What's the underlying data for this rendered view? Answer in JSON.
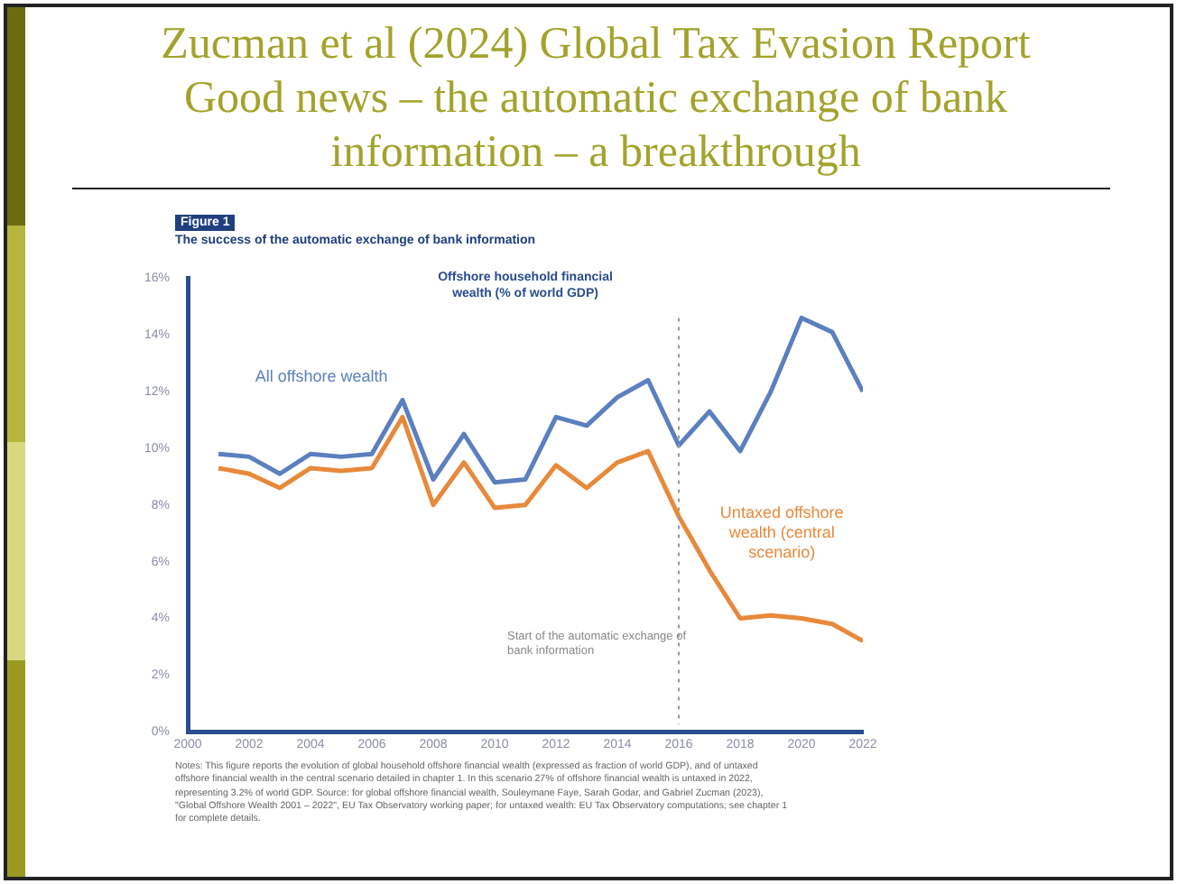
{
  "chart_data": {
    "type": "line",
    "title": "Zucman et al (2024) Global Tax Evasion Report Good news – the automatic exchange of bank information – a breakthrough",
    "subtitle": "The success of the automatic exchange of bank information",
    "x": [
      2001,
      2002,
      2003,
      2004,
      2005,
      2006,
      2007,
      2008,
      2009,
      2010,
      2011,
      2012,
      2013,
      2014,
      2015,
      2016,
      2017,
      2018,
      2019,
      2020,
      2021,
      2022
    ],
    "series": [
      {
        "name": "All offshore wealth",
        "color": "#5b7fbf",
        "values": [
          9.8,
          9.7,
          9.1,
          9.8,
          9.7,
          9.8,
          11.7,
          8.9,
          10.5,
          8.8,
          8.9,
          11.1,
          10.8,
          11.8,
          12.4,
          10.1,
          11.3,
          9.9,
          12.0,
          14.6,
          14.1,
          12.0
        ]
      },
      {
        "name": "Untaxed offshore wealth (central scenario)",
        "color": "#e8893a",
        "values": [
          9.3,
          9.1,
          8.6,
          9.3,
          9.2,
          9.3,
          11.1,
          8.0,
          9.5,
          7.9,
          8.0,
          9.4,
          8.6,
          9.5,
          9.9,
          7.6,
          5.7,
          4.0,
          4.1,
          4.0,
          3.8,
          3.2
        ]
      }
    ],
    "xlim": [
      2000,
      2022
    ],
    "xticks": [
      2000,
      2002,
      2004,
      2006,
      2008,
      2010,
      2012,
      2014,
      2016,
      2018,
      2020,
      2022
    ],
    "ylim": [
      0,
      16
    ],
    "yticks": [
      {
        "value": 0,
        "label": "0%"
      },
      {
        "value": 2,
        "label": "2%"
      },
      {
        "value": 4,
        "label": "4%"
      },
      {
        "value": 6,
        "label": "6%"
      },
      {
        "value": 8,
        "label": "8%"
      },
      {
        "value": 10,
        "label": "10%"
      },
      {
        "value": 12,
        "label": "12%"
      },
      {
        "value": 14,
        "label": "14%"
      },
      {
        "value": 16,
        "label": "16%"
      }
    ],
    "grid": false,
    "legend": false,
    "marker": "none",
    "line_style": "solid",
    "ref_lines": [
      {
        "axis": "x",
        "value": 2016,
        "label": "Start of the automatic exchange of bank information",
        "color": "#999999",
        "line_style": "dotted"
      }
    ],
    "annotations": [
      "Figure 1",
      "Offshore household financial wealth (% of world GDP)",
      "Notes: This figure reports the evolution of global household offshore financial wealth (expressed as fraction of world GDP), and of untaxed offshore financial wealth in the central scenario detailed in chapter 1. In this scenario 27% of offshore financial wealth is untaxed in 2022, representing 3.2% of world GDP. Source: for global offshore financial wealth, Souleymane Faye, Sarah Godar, and Gabriel Zucman (2023), \"Global Offshore Wealth 2001 – 2022\", EU Tax Observatory working paper; for untaxed wealth: EU Tax Observatory computations; see chapter 1 for complete details."
    ]
  }
}
